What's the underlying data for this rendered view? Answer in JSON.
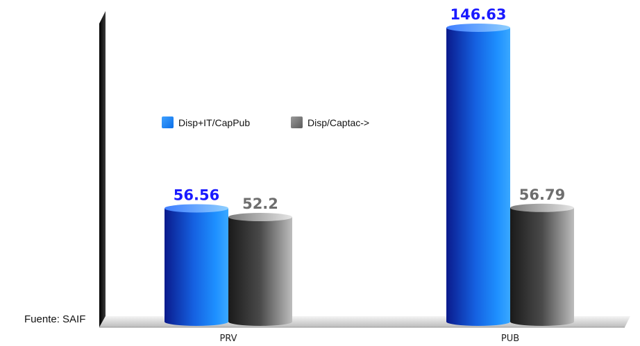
{
  "source_note": "Fuente: SAIF",
  "chart_data": {
    "type": "bar",
    "categories": [
      "PRV",
      "PUB"
    ],
    "series": [
      {
        "name": "Disp+IT/CapPub",
        "values": [
          56.56,
          146.63
        ],
        "color": "#0a84ff",
        "label_color": "#1a1aff"
      },
      {
        "name": "Disp/Captac->",
        "values": [
          52.2,
          56.79
        ],
        "color": "#808080",
        "label_color": "#6e6e6e"
      }
    ],
    "value_labels": {
      "PRV": [
        "56.56",
        "52.2"
      ],
      "PUB": [
        "146.63",
        "56.79"
      ]
    },
    "ylim": [
      0,
      160
    ],
    "grid": false,
    "legend_position": "center-left",
    "title": "",
    "xlabel": "",
    "ylabel": ""
  }
}
